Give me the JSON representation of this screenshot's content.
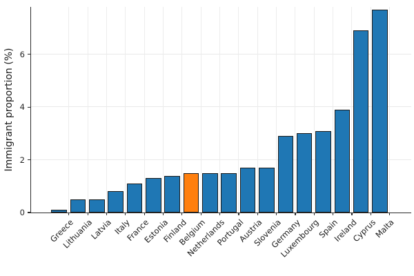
{
  "chart_data": {
    "type": "bar",
    "title": "",
    "xlabel": "",
    "ylabel": "Immigrant proportion (%)",
    "categories": [
      "Greece",
      "Lithuania",
      "Latvia",
      "Italy",
      "France",
      "Estonia",
      "Finland",
      "Belgium",
      "Netherlands",
      "Portugal",
      "Austria",
      "Slovenia",
      "Germany",
      "Luxembourg",
      "Spain",
      "Ireland",
      "Cyprus",
      "Malta"
    ],
    "values": [
      0.1,
      0.5,
      0.5,
      0.8,
      1.1,
      1.3,
      1.4,
      1.5,
      1.5,
      1.5,
      1.7,
      1.7,
      2.9,
      3.0,
      3.1,
      3.9,
      6.9,
      7.7
    ],
    "highlight_category": "Belgium",
    "yticks": [
      "0",
      "2",
      "4",
      "6"
    ],
    "ytick_values": [
      0,
      2,
      4,
      6
    ],
    "ylim": [
      0,
      7.8
    ],
    "grid": "both",
    "legend": "none",
    "colors": {
      "bar": "#1f77b4",
      "highlight": "#ff7f0e",
      "bar_edge": "#1a1a1a",
      "grid_line": "#e9e9e9",
      "axis_line": "#2b2b2b",
      "text": "#1a1a1a"
    }
  }
}
